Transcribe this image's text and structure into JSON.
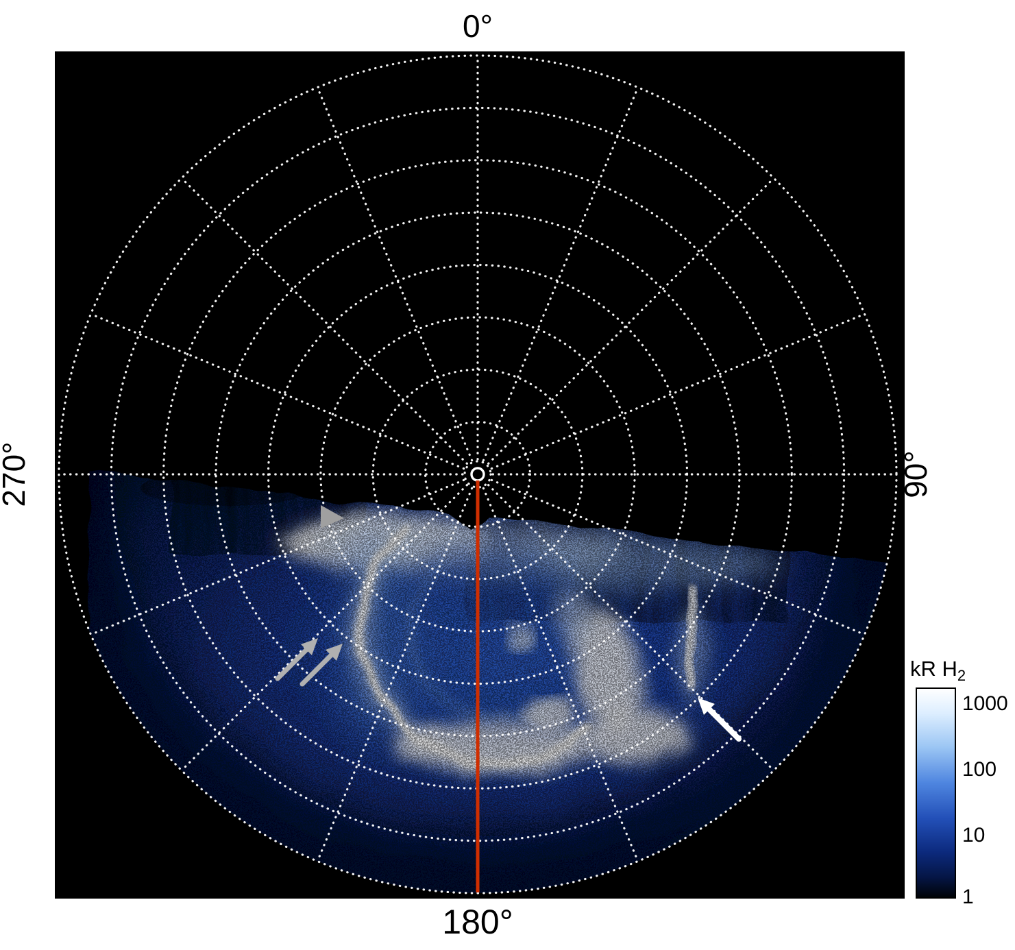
{
  "labels": {
    "top": "0°",
    "right": "90°",
    "bottom": "180°",
    "left": "270°"
  },
  "colorbar": {
    "title_main": "kR H",
    "title_sub": "2",
    "ticks": [
      "1000",
      "100",
      "10",
      "1"
    ],
    "scale": "log",
    "range_min": 1,
    "range_max": 1000,
    "colormap": [
      "#000000",
      "#051646",
      "#0c2a7e",
      "#2350b8",
      "#4f86e0",
      "#9cc6f4",
      "#ddeeff",
      "#ffffff"
    ]
  },
  "colors": {
    "background": "#ffffff",
    "plot_background": "#000000",
    "grid": "#ffffff",
    "meridian_line": "#cf2e00",
    "gray_annotation": "#a8a8a8",
    "white_annotation": "#ffffff"
  },
  "chart_data": {
    "type": "heatmap",
    "projection": "polar",
    "title": "",
    "angular_axis": {
      "tick_labels": [
        "0°",
        "90°",
        "180°",
        "270°"
      ],
      "tick_positions_deg": [
        0,
        90,
        180,
        270
      ],
      "grid_step_deg": 22.5
    },
    "radial_axis": {
      "grid_circles": 8
    },
    "colorbar": {
      "label": "kR H2",
      "scale": "log",
      "range": [
        1,
        1000
      ],
      "tick_values": [
        1000,
        100,
        10,
        1
      ]
    },
    "content": {
      "description": "Polar projection of H2 auroral emission brightness. Emission (blue to saturated white, 1-1000 kR) fills the lower sector roughly between 90° and 270° through 180°; the upper half of the disk is unobserved (black). A red line marks the 180° meridian from the pole to the outer boundary.",
      "features": [
        {
          "name": "main-auroral-arc",
          "appearance": "narrow bright white C-shaped arc",
          "location": "west/south of pole"
        },
        {
          "name": "bright-patchy-emission",
          "appearance": "broad saturated white patches",
          "location": "south-east quadrant"
        },
        {
          "name": "narrow-bright-streak",
          "appearance": "thin vertical bright streak",
          "location": "east side, indicated by white arrow"
        },
        {
          "name": "dawn-terminator-band",
          "appearance": "bright band with vertical streaking along emission edge",
          "location": "upper edge of observed sector"
        },
        {
          "name": "meridian-line",
          "label": "180° meridian",
          "color": "#cf2e00"
        }
      ]
    },
    "annotations": [
      {
        "type": "arrowhead",
        "color": "gray",
        "points_toward": "emission boundary feature near 250°"
      },
      {
        "type": "double-arrow",
        "color": "gray",
        "points_toward": "main auroral arc"
      },
      {
        "type": "arrow",
        "color": "white",
        "points_toward": "narrow bright streak in south-east"
      }
    ]
  }
}
